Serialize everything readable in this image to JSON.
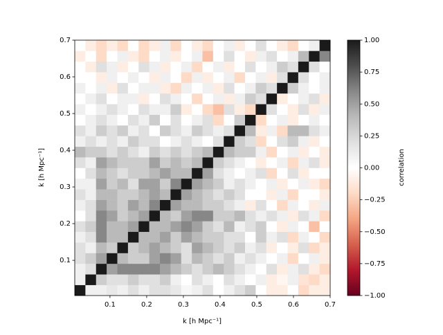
{
  "chart_data": {
    "type": "heatmap",
    "xlabel": "k [h Mpc⁻¹]",
    "ylabel": "k [h Mpc⁻¹]",
    "colorbar_label": "correlation",
    "xlim": [
      0.004,
      0.7
    ],
    "ylim": [
      0.004,
      0.7
    ],
    "xticks": [
      0.1,
      0.2,
      0.3,
      0.4,
      0.5,
      0.6,
      0.7
    ],
    "yticks": [
      0.1,
      0.2,
      0.3,
      0.4,
      0.5,
      0.6,
      0.7
    ],
    "clim": [
      -1,
      1
    ],
    "cticks": [
      {
        "value": -1,
        "label": "−1.00"
      },
      {
        "value": -0.75,
        "label": "−0.75"
      },
      {
        "value": -0.5,
        "label": "−0.50"
      },
      {
        "value": -0.25,
        "label": "−0.25"
      },
      {
        "value": 0,
        "label": "0.00"
      },
      {
        "value": 0.25,
        "label": "0.25"
      },
      {
        "value": 0.5,
        "label": "0.50"
      },
      {
        "value": 0.75,
        "label": "0.75"
      },
      {
        "value": 1,
        "label": "1.00"
      }
    ],
    "colorscale": [
      "#67001f",
      "#b2182b",
      "#d6604d",
      "#f4a582",
      "#fddbc7",
      "#ffffff",
      "#e0e0e0",
      "#bababa",
      "#878787",
      "#4d4d4d",
      "#1a1a1a"
    ],
    "z": [
      [
        1,
        0.1,
        0.1,
        0.15,
        0.1,
        0.2,
        0.1,
        0.2,
        0.2,
        0.15,
        0.05,
        0.1,
        0.2,
        0,
        0.1,
        0.2,
        0.3,
        0,
        -0.1,
        -0.1,
        0,
        -0.2,
        -0.1,
        -0.1
      ],
      [
        0.1,
        1,
        0.3,
        0.2,
        0.2,
        0.3,
        0.2,
        0.2,
        0.3,
        0.1,
        0,
        0.2,
        0.1,
        0,
        0.2,
        0.1,
        0,
        0.1,
        -0.1,
        -0.05,
        0.1,
        -0.15,
        -0.2,
        -0.1
      ],
      [
        0.1,
        0.2,
        1,
        0.5,
        0.6,
        0.6,
        0.6,
        0.6,
        0.5,
        0.4,
        0.3,
        0.2,
        0.3,
        0.4,
        0.3,
        0.2,
        0.1,
        0,
        0.2,
        -0.1,
        0.1,
        0.2,
        -0.1,
        -0.2
      ],
      [
        0.2,
        0.3,
        0.5,
        1,
        0.4,
        0.3,
        0.3,
        0.5,
        0.6,
        0.5,
        0.2,
        0.4,
        0.3,
        0.2,
        0.3,
        0.1,
        0.2,
        0.1,
        0,
        0.1,
        -0.2,
        0,
        0.1,
        -0.1
      ],
      [
        0.2,
        0.1,
        0.4,
        0.3,
        1,
        0.3,
        0.4,
        0.5,
        0.4,
        0.3,
        0.2,
        0.5,
        0.4,
        0.3,
        0.2,
        0.3,
        0.1,
        0.2,
        -0.1,
        0,
        -0.1,
        0.2,
        -0.2,
        -0.1
      ],
      [
        0.1,
        0.2,
        0.6,
        0.4,
        0.4,
        1,
        0.4,
        0.4,
        0.5,
        0.3,
        0.5,
        0.4,
        0.3,
        0.3,
        0.2,
        0.2,
        0,
        0.3,
        0.1,
        0.2,
        -0.2,
        0.1,
        0,
        -0.2
      ],
      [
        0.2,
        0.3,
        0.6,
        0.4,
        0.4,
        0.5,
        1,
        0.4,
        0.4,
        0.5,
        0.6,
        0.5,
        0.3,
        0.2,
        0.4,
        0.1,
        0.2,
        0.3,
        0,
        -0.1,
        0.1,
        0,
        -0.3,
        0
      ],
      [
        0,
        0.2,
        0.6,
        0.5,
        0.3,
        0.4,
        0.5,
        1,
        0.4,
        0.3,
        0.5,
        0.6,
        0.6,
        0.3,
        0.3,
        0.4,
        0.2,
        0.1,
        0.2,
        0.1,
        -0.1,
        0.2,
        0.1,
        -0.2
      ],
      [
        0.1,
        0.2,
        0.5,
        0.4,
        0.3,
        0.5,
        0.4,
        0.6,
        1,
        0.5,
        0.4,
        0.4,
        0.3,
        0.3,
        0.2,
        0.1,
        -0.1,
        0.2,
        0,
        -0.2,
        0.1,
        0,
        -0.1,
        0.1
      ],
      [
        0.2,
        0.1,
        0.4,
        0.4,
        0.3,
        0.3,
        0.4,
        0.5,
        0.4,
        1,
        0.5,
        0.4,
        0.3,
        0.2,
        0.3,
        0.2,
        0,
        0,
        -0.1,
        0.1,
        -0.2,
        0,
        0,
        -0.1
      ],
      [
        0.1,
        0.1,
        0.5,
        0.3,
        0.4,
        0.2,
        0.5,
        0.5,
        0.3,
        0.6,
        1,
        0.5,
        0.4,
        0.3,
        0.1,
        0.2,
        0.1,
        0,
        0.1,
        -0.1,
        0,
        0.1,
        -0.1,
        -0.2
      ],
      [
        0,
        0.2,
        0.4,
        0.3,
        0.2,
        0.3,
        0.3,
        0.4,
        0.5,
        0.4,
        0.4,
        1,
        0.5,
        0.2,
        0.1,
        0,
        0.1,
        0.2,
        -0.2,
        0,
        0.2,
        -0.1,
        0,
        0
      ],
      [
        0.2,
        0.1,
        0.5,
        0.4,
        0.3,
        0.3,
        0.3,
        0.5,
        0.3,
        0.4,
        0.3,
        0.4,
        1,
        0.3,
        0.2,
        0.1,
        0,
        -0.1,
        0,
        0.1,
        -0.2,
        0.1,
        0.2,
        -0.1
      ],
      [
        0.4,
        0.3,
        0.3,
        0.2,
        0.3,
        0.2,
        0.1,
        0.3,
        0.2,
        0.3,
        0.2,
        0.3,
        0.4,
        1,
        0.4,
        0.3,
        0.3,
        0.1,
        -0.2,
        0,
        0.1,
        -0.1,
        0,
        -0.1
      ],
      [
        0.1,
        0.2,
        0.1,
        0.2,
        0.1,
        0.3,
        0.2,
        0.2,
        0,
        0.1,
        0.2,
        0.1,
        0,
        0.2,
        1,
        0.3,
        0.2,
        -0.2,
        0,
        0.2,
        0.3,
        0.1,
        -0.1,
        0
      ],
      [
        0.2,
        0.1,
        0.3,
        0.2,
        0.3,
        0.1,
        0.2,
        0,
        0.3,
        0.2,
        0.1,
        0.3,
        0.2,
        0.1,
        0.2,
        1,
        0.4,
        -0.1,
        0.1,
        -0.2,
        0.4,
        0.4,
        0.2,
        0.1
      ],
      [
        0,
        0.1,
        0.2,
        0.1,
        0,
        0.2,
        0.1,
        0.3,
        0,
        0.2,
        0,
        0.1,
        0.2,
        -0.2,
        0,
        0.3,
        1,
        -0.2,
        0,
        0.1,
        -0.1,
        0,
        0.1,
        0
      ],
      [
        0.1,
        0,
        0.1,
        0.2,
        0.1,
        0,
        0.2,
        0.1,
        0.1,
        0.3,
        -0.1,
        0,
        -0.2,
        -0.3,
        0.2,
        -0.1,
        -0.2,
        1,
        0.2,
        0,
        -0.1,
        0.2,
        -0.1,
        0.1
      ],
      [
        0,
        0.1,
        0.2,
        0,
        0.1,
        0.1,
        -0.1,
        0,
        0.2,
        0.1,
        0,
        -0.2,
        0,
        0.1,
        -0.1,
        0.1,
        0.3,
        0.2,
        1,
        -0.1,
        0,
        0.1,
        0.2,
        -0.1
      ],
      [
        0.1,
        0,
        0.1,
        -0.1,
        0.2,
        0,
        0.1,
        0.1,
        -0.1,
        -0.2,
        0.1,
        0,
        0.1,
        -0.1,
        0.2,
        0,
        0.1,
        0.3,
        0.2,
        1,
        0.3,
        0.1,
        0,
        0.1
      ],
      [
        0,
        0,
        -0.1,
        0.1,
        0,
        0.1,
        0,
        -0.1,
        0.1,
        0,
        -0.2,
        0.1,
        -0.1,
        0,
        0.1,
        -0.2,
        0,
        0.1,
        -0.1,
        0.2,
        1,
        0.2,
        0,
        0.1
      ],
      [
        0,
        -0.1,
        0.2,
        0.1,
        -0.1,
        0,
        0.2,
        0.1,
        -0.1,
        0,
        0.1,
        -0.2,
        0,
        0.1,
        -0.1,
        0,
        0.2,
        0,
        0.1,
        0.3,
        0.2,
        1,
        0.2,
        0
      ],
      [
        -0.1,
        0,
        -0.2,
        0,
        0.1,
        -0.1,
        -0.2,
        0,
        0.1,
        -0.1,
        0,
        0.1,
        -0.3,
        0,
        0.2,
        0,
        -0.1,
        0.1,
        0.2,
        0,
        0.1,
        0.4,
        1,
        0.6
      ],
      [
        0,
        -0.1,
        -0.2,
        -0.1,
        -0.2,
        0,
        -0.2,
        -0.1,
        0.1,
        -0.2,
        0,
        -0.1,
        -0.2,
        0,
        0.1,
        -0.1,
        0,
        0.2,
        0,
        -0.1,
        -0.2,
        0,
        0.1,
        1
      ]
    ]
  }
}
